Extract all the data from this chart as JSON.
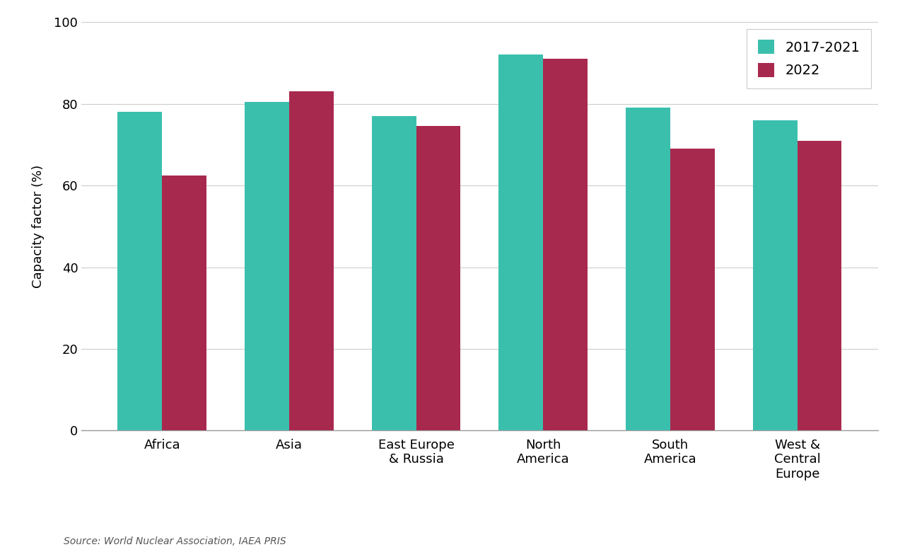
{
  "categories": [
    "Africa",
    "Asia",
    "East Europe\n& Russia",
    "North\nAmerica",
    "South\nAmerica",
    "West &\nCentral\nEurope"
  ],
  "values_2017_2021": [
    78,
    80.5,
    77,
    92,
    79,
    76
  ],
  "values_2022": [
    62.5,
    83,
    74.5,
    91,
    69,
    71
  ],
  "color_2017_2021": "#3bbfad",
  "color_2022": "#a8294e",
  "ylabel": "Capacity factor (%)",
  "ylim": [
    0,
    100
  ],
  "yticks": [
    0,
    20,
    40,
    60,
    80,
    100
  ],
  "legend_labels": [
    "2017-2021",
    "2022"
  ],
  "source_text": "Source: World Nuclear Association, IAEA PRIS",
  "bar_width": 0.35,
  "background_color": "#ffffff",
  "grid_color": "#cccccc",
  "spine_color": "#999999"
}
